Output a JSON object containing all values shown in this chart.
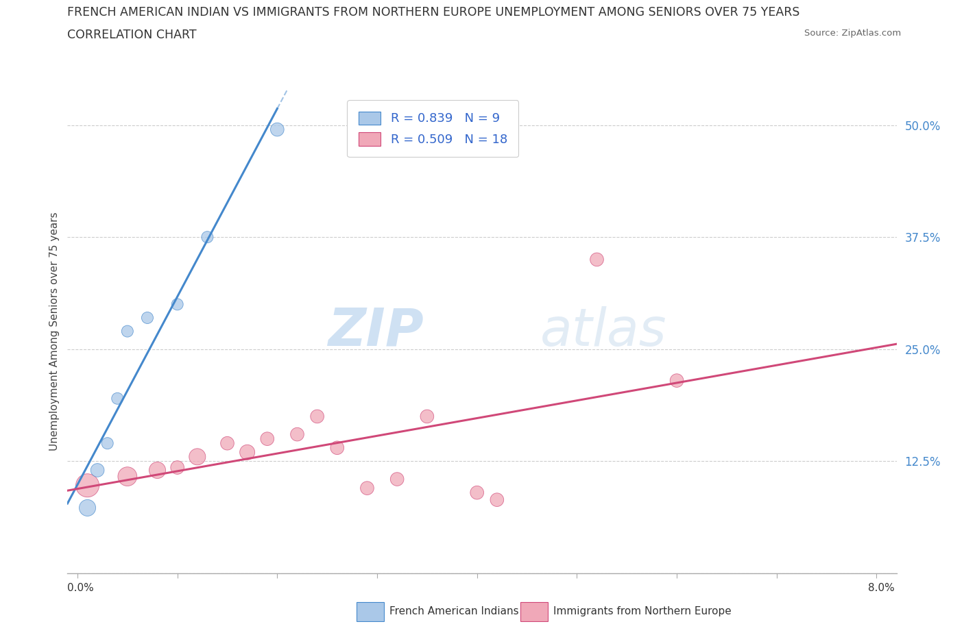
{
  "title_line1": "FRENCH AMERICAN INDIAN VS IMMIGRANTS FROM NORTHERN EUROPE UNEMPLOYMENT AMONG SENIORS OVER 75 YEARS",
  "title_line2": "CORRELATION CHART",
  "source": "Source: ZipAtlas.com",
  "ylabel": "Unemployment Among Seniors over 75 years",
  "blue_points": {
    "x": [
      0.001,
      0.002,
      0.003,
      0.004,
      0.005,
      0.007,
      0.01,
      0.013,
      0.02
    ],
    "y": [
      0.073,
      0.115,
      0.145,
      0.195,
      0.27,
      0.285,
      0.3,
      0.375,
      0.495
    ],
    "sizes": [
      300,
      200,
      150,
      150,
      150,
      150,
      150,
      150,
      200
    ]
  },
  "pink_points": {
    "x": [
      0.001,
      0.005,
      0.008,
      0.01,
      0.012,
      0.015,
      0.017,
      0.019,
      0.022,
      0.024,
      0.026,
      0.029,
      0.032,
      0.035,
      0.04,
      0.042,
      0.052,
      0.06
    ],
    "y": [
      0.098,
      0.108,
      0.115,
      0.118,
      0.13,
      0.145,
      0.135,
      0.15,
      0.155,
      0.175,
      0.14,
      0.095,
      0.105,
      0.175,
      0.09,
      0.082,
      0.35,
      0.215
    ],
    "sizes": [
      600,
      400,
      300,
      200,
      300,
      200,
      250,
      200,
      200,
      200,
      200,
      200,
      200,
      200,
      200,
      200,
      200,
      200
    ]
  },
  "blue_R": 0.839,
  "blue_N": 9,
  "pink_R": 0.509,
  "pink_N": 18,
  "blue_color": "#aac8e8",
  "blue_line_color": "#4488cc",
  "pink_color": "#f0a8b8",
  "pink_line_color": "#d04878",
  "watermark_zip": "ZIP",
  "watermark_atlas": "atlas",
  "ylim": [
    0.0,
    0.54
  ],
  "xlim": [
    -0.001,
    0.082
  ],
  "yticks": [
    0.0,
    0.125,
    0.25,
    0.375,
    0.5
  ],
  "ytick_labels": [
    "",
    "12.5%",
    "25.0%",
    "37.5%",
    "50.0%"
  ],
  "xtick_positions": [
    0.0,
    0.01,
    0.02,
    0.03,
    0.04,
    0.05,
    0.06,
    0.07,
    0.08
  ],
  "background_color": "#ffffff",
  "grid_color": "#cccccc"
}
